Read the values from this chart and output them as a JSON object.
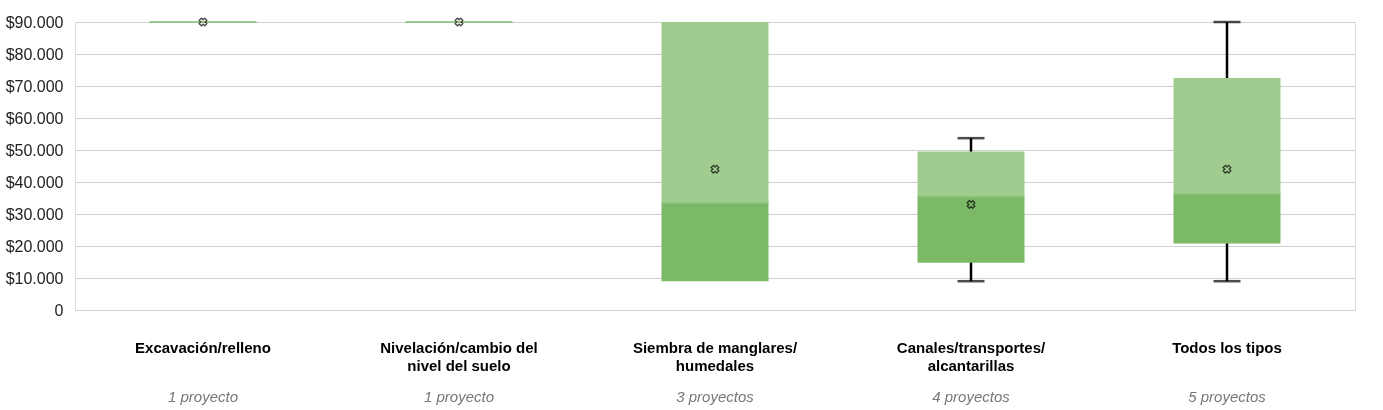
{
  "chart_data": {
    "type": "box",
    "categories": [
      "Excavación/relleno",
      "Nivelación/cambio del nivel del suelo",
      "Siembra de manglares/humedales",
      "Canales/transportes/alcantarillas",
      "Todos los tipos"
    ],
    "series": [
      {
        "color": "#7cb966",
        "boxes": [
          {
            "low": 90000,
            "q1": 90000,
            "median": 90000,
            "q3": 90000,
            "high": 90000,
            "mean": 90000
          },
          {
            "low": 90000,
            "q1": 90000,
            "median": 90000,
            "q3": 90000,
            "high": 90000,
            "mean": 90000
          },
          {
            "low": 9000,
            "q1": 9000,
            "median": 33300,
            "q3": 90000,
            "high": 90000,
            "mean": 44000
          },
          {
            "low": 9000,
            "q1": 14800,
            "median": 35200,
            "q3": 49500,
            "high": 53700,
            "mean": 33000
          },
          {
            "low": 9000,
            "q1": 20800,
            "median": 36100,
            "q3": 72500,
            "high": 90000,
            "mean": 44000
          }
        ]
      }
    ],
    "marker": "cross",
    "ylim": [
      0,
      90000
    ],
    "yticks": [
      {
        "value": 0,
        "label": "0"
      },
      {
        "value": 10000,
        "label": "$10.000"
      },
      {
        "value": 20000,
        "label": "$20.000"
      },
      {
        "value": 30000,
        "label": "$30.000"
      },
      {
        "value": 40000,
        "label": "$40.000"
      },
      {
        "value": 50000,
        "label": "$50.000"
      },
      {
        "value": 60000,
        "label": "$60.000"
      },
      {
        "value": 70000,
        "label": "$70.000"
      },
      {
        "value": 80000,
        "label": "$80.000"
      },
      {
        "value": 90000,
        "label": "$90.000"
      }
    ],
    "grid": "y",
    "annotations": [
      "1 proyecto",
      "1 proyecto",
      "3 proyectos",
      "4 proyectos",
      "5 proyectos"
    ]
  }
}
